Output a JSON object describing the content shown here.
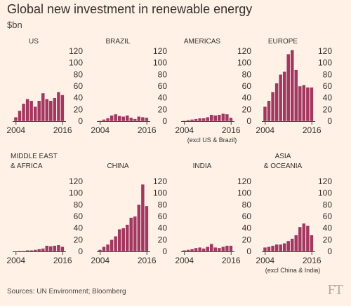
{
  "title": "Global new investment in renewable energy",
  "subtitle": "$bn",
  "footer": {
    "source": "Sources: UN Environment; Bloomberg",
    "logo": "FT"
  },
  "colors": {
    "background": "#fff1e5",
    "bar": "#a3375e",
    "bar_edge": "#ffffff",
    "axis_line": "#4a4744",
    "text": "#33302e"
  },
  "chart_data": [
    {
      "type": "bar",
      "title": [
        "US"
      ],
      "note": "",
      "x_start": 2004,
      "x_end": 2016,
      "xtick_labels": [
        "2004",
        "2016"
      ],
      "yticks": [
        0,
        20,
        40,
        60,
        80,
        100,
        120
      ],
      "ylim": [
        0,
        120
      ],
      "show_ytick_labels": true,
      "values": [
        7,
        18,
        30,
        38,
        35,
        25,
        35,
        48,
        38,
        35,
        40,
        50,
        45
      ]
    },
    {
      "type": "bar",
      "title": [
        "BRAZIL"
      ],
      "note": "",
      "x_start": 2004,
      "x_end": 2016,
      "xtick_labels": [
        "2004",
        "2016"
      ],
      "yticks": [
        0,
        20,
        40,
        60,
        80,
        100,
        120
      ],
      "ylim": [
        0,
        120
      ],
      "show_ytick_labels": true,
      "values": [
        1,
        3,
        5,
        10,
        12,
        9,
        8,
        10,
        6,
        4,
        8,
        7,
        6
      ]
    },
    {
      "type": "bar",
      "title": [
        "AMERICAS"
      ],
      "note": "(excl US & Brazil)",
      "x_start": 2004,
      "x_end": 2016,
      "xtick_labels": [
        "2004",
        "2016"
      ],
      "yticks": [
        0,
        20,
        40,
        60,
        80,
        100,
        120
      ],
      "ylim": [
        0,
        120
      ],
      "show_ytick_labels": true,
      "values": [
        1,
        2,
        3,
        4,
        5,
        5,
        7,
        11,
        10,
        11,
        13,
        12,
        6
      ]
    },
    {
      "type": "bar",
      "title": [
        "EUROPE"
      ],
      "note": "",
      "x_start": 2004,
      "x_end": 2016,
      "xtick_labels": [
        "2004",
        "2016"
      ],
      "yticks": [
        0,
        20,
        40,
        60,
        80,
        100,
        120
      ],
      "ylim": [
        0,
        120
      ],
      "show_ytick_labels": true,
      "values": [
        25,
        35,
        50,
        65,
        80,
        85,
        115,
        122,
        88,
        60,
        62,
        58,
        58
      ]
    },
    {
      "type": "bar",
      "title": [
        "MIDDLE EAST",
        "& AFRICA"
      ],
      "note": "",
      "x_start": 2004,
      "x_end": 2016,
      "xtick_labels": [
        "2004",
        "2016"
      ],
      "yticks": [
        0,
        20,
        40,
        60,
        80,
        100,
        120
      ],
      "ylim": [
        0,
        120
      ],
      "show_ytick_labels": true,
      "values": [
        0.5,
        1,
        1,
        2,
        2,
        3,
        4,
        5,
        10,
        9,
        10,
        11,
        8
      ]
    },
    {
      "type": "bar",
      "title": [
        "CHINA"
      ],
      "note": "",
      "x_start": 2004,
      "x_end": 2016,
      "xtick_labels": [
        "2004",
        "2016"
      ],
      "yticks": [
        0,
        20,
        40,
        60,
        80,
        100,
        120
      ],
      "ylim": [
        0,
        120
      ],
      "show_ytick_labels": true,
      "values": [
        3,
        8,
        12,
        20,
        26,
        38,
        40,
        46,
        58,
        60,
        80,
        115,
        78
      ]
    },
    {
      "type": "bar",
      "title": [
        "INDIA"
      ],
      "note": "",
      "x_start": 2004,
      "x_end": 2016,
      "xtick_labels": [
        "2004",
        "2016"
      ],
      "yticks": [
        0,
        20,
        40,
        60,
        80,
        100,
        120
      ],
      "ylim": [
        0,
        120
      ],
      "show_ytick_labels": true,
      "values": [
        2,
        3,
        4,
        6,
        7,
        5,
        8,
        13,
        7,
        6,
        8,
        10,
        10
      ]
    },
    {
      "type": "bar",
      "title": [
        "ASIA",
        "& OCEANIA"
      ],
      "note": "(excl China & India)",
      "x_start": 2004,
      "x_end": 2016,
      "xtick_labels": [
        "2004",
        "2016"
      ],
      "yticks": [
        0,
        20,
        40,
        60,
        80,
        100,
        120
      ],
      "ylim": [
        0,
        120
      ],
      "show_ytick_labels": true,
      "values": [
        7,
        8,
        10,
        12,
        12,
        14,
        18,
        22,
        28,
        42,
        48,
        44,
        28
      ]
    }
  ]
}
